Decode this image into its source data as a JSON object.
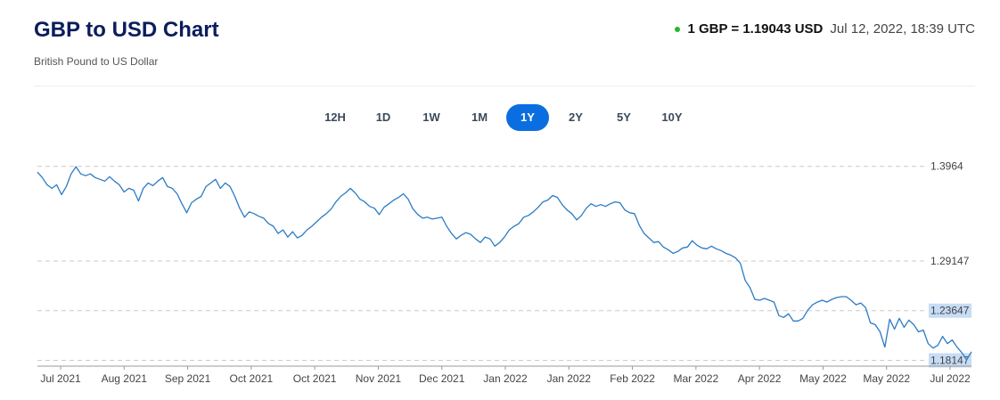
{
  "header": {
    "title": "GBP to USD Chart",
    "subtitle": "British Pound to US Dollar",
    "rate": "1 GBP = 1.19043 USD",
    "timestamp": "Jul 12, 2022, 18:39 UTC",
    "status_dot_color": "#2db52d"
  },
  "tabs": [
    {
      "label": "12H",
      "active": false
    },
    {
      "label": "1D",
      "active": false
    },
    {
      "label": "1W",
      "active": false
    },
    {
      "label": "1M",
      "active": false
    },
    {
      "label": "1Y",
      "active": true
    },
    {
      "label": "2Y",
      "active": false
    },
    {
      "label": "5Y",
      "active": false
    },
    {
      "label": "10Y",
      "active": false
    }
  ],
  "colors": {
    "accent": "#0b6ee0",
    "line": "#2b7bc4",
    "highlight_label_bg": "#c7dcf5"
  },
  "chart_data": {
    "type": "line",
    "title": "",
    "xlabel": "",
    "ylabel": "",
    "ylim": [
      1.175,
      1.405
    ],
    "y_ticks": [
      {
        "value": 1.3964,
        "label": "1.3964",
        "highlight": false
      },
      {
        "value": 1.29147,
        "label": "1.29147",
        "highlight": false
      },
      {
        "value": 1.23647,
        "label": "1.23647",
        "highlight": true
      },
      {
        "value": 1.18147,
        "label": "1.18147",
        "highlight": true
      }
    ],
    "x_labels": [
      "Jul 2021",
      "Aug 2021",
      "Sep 2021",
      "Oct 2021",
      "Oct 2021",
      "Nov 2021",
      "Dec 2021",
      "Jan 2022",
      "Jan 2022",
      "Feb 2022",
      "Mar 2022",
      "Apr 2022",
      "May 2022",
      "May 2022",
      "Jul 2022"
    ],
    "grid": true,
    "series": [
      {
        "values": [
          1.39,
          1.384,
          1.376,
          1.372,
          1.376,
          1.365,
          1.374,
          1.388,
          1.396,
          1.388,
          1.386,
          1.388,
          1.384,
          1.382,
          1.38,
          1.385,
          1.38,
          1.376,
          1.368,
          1.372,
          1.37,
          1.358,
          1.372,
          1.378,
          1.375,
          1.38,
          1.384,
          1.374,
          1.372,
          1.366,
          1.355,
          1.345,
          1.356,
          1.36,
          1.363,
          1.374,
          1.378,
          1.382,
          1.372,
          1.378,
          1.374,
          1.363,
          1.35,
          1.34,
          1.346,
          1.344,
          1.341,
          1.339,
          1.333,
          1.33,
          1.322,
          1.326,
          1.318,
          1.324,
          1.317,
          1.32,
          1.326,
          1.33,
          1.335,
          1.34,
          1.344,
          1.349,
          1.357,
          1.363,
          1.367,
          1.372,
          1.367,
          1.36,
          1.357,
          1.352,
          1.35,
          1.343,
          1.351,
          1.355,
          1.359,
          1.362,
          1.366,
          1.36,
          1.349,
          1.343,
          1.339,
          1.34,
          1.338,
          1.339,
          1.34,
          1.33,
          1.322,
          1.316,
          1.32,
          1.323,
          1.321,
          1.316,
          1.312,
          1.318,
          1.316,
          1.308,
          1.312,
          1.318,
          1.326,
          1.33,
          1.333,
          1.34,
          1.342,
          1.346,
          1.351,
          1.357,
          1.359,
          1.364,
          1.362,
          1.354,
          1.348,
          1.344,
          1.337,
          1.342,
          1.35,
          1.355,
          1.352,
          1.354,
          1.352,
          1.355,
          1.357,
          1.356,
          1.348,
          1.345,
          1.344,
          1.331,
          1.322,
          1.317,
          1.312,
          1.313,
          1.307,
          1.304,
          1.3,
          1.302,
          1.306,
          1.307,
          1.314,
          1.309,
          1.306,
          1.305,
          1.308,
          1.305,
          1.303,
          1.3,
          1.298,
          1.295,
          1.289,
          1.27,
          1.262,
          1.249,
          1.248,
          1.25,
          1.248,
          1.246,
          1.231,
          1.229,
          1.233,
          1.225,
          1.225,
          1.228,
          1.237,
          1.243,
          1.246,
          1.248,
          1.246,
          1.249,
          1.251,
          1.252,
          1.252,
          1.248,
          1.243,
          1.245,
          1.24,
          1.223,
          1.221,
          1.213,
          1.196,
          1.227,
          1.216,
          1.228,
          1.218,
          1.226,
          1.221,
          1.213,
          1.215,
          1.2,
          1.195,
          1.198,
          1.208,
          1.2,
          1.204,
          1.196,
          1.19,
          1.182,
          1.191
        ]
      }
    ]
  }
}
